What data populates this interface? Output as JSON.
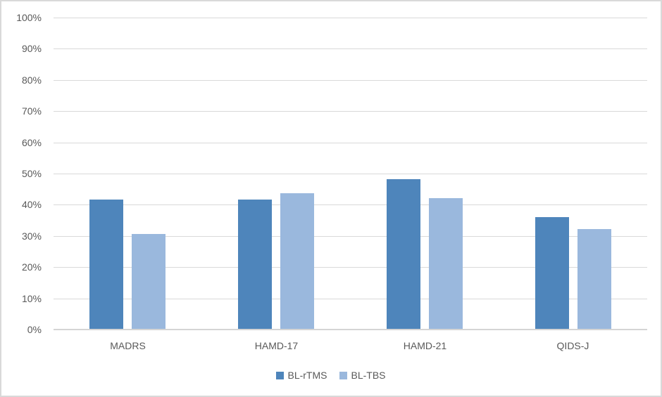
{
  "chart_data": {
    "type": "bar",
    "title": "",
    "xlabel": "",
    "ylabel": "",
    "categories": [
      "MADRS",
      "HAMD-17",
      "HAMD-21",
      "QIDS-J"
    ],
    "series": [
      {
        "name": "BL-rTMS",
        "color": "#4E85BB",
        "values": [
          41.4,
          41.4,
          47.9,
          35.7
        ]
      },
      {
        "name": "BL-TBS",
        "color": "#9AB8DD",
        "values": [
          30.4,
          43.4,
          42.0,
          31.9
        ]
      }
    ],
    "ylim": [
      0,
      100
    ],
    "ytick_step": 10,
    "ytick_labels": [
      "0%",
      "10%",
      "20%",
      "30%",
      "40%",
      "50%",
      "60%",
      "70%",
      "80%",
      "90%",
      "100%"
    ],
    "grid": true,
    "legend_position": "bottom-center",
    "units": "percent"
  },
  "colors": {
    "background": "#FFFFFF",
    "border": "#D9D9D9",
    "gridline": "#D9D9D9",
    "axis_line": "#D5D5D5",
    "text": "#595959",
    "series_dark": "#4E85BB",
    "series_light": "#9AB8DD"
  }
}
